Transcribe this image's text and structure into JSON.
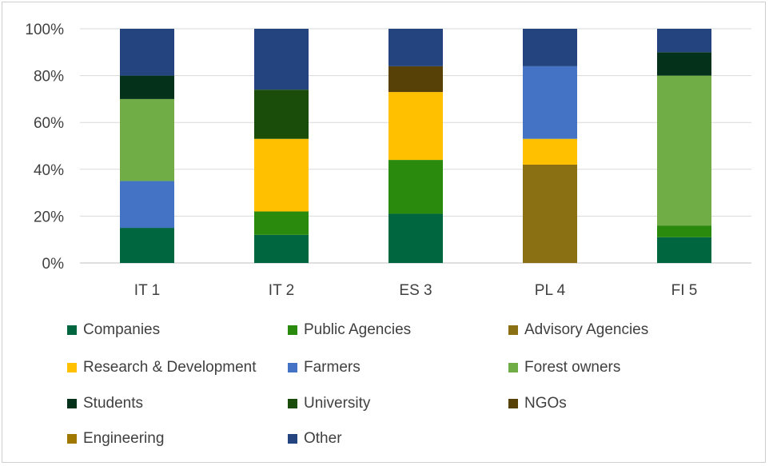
{
  "chart_data": {
    "type": "bar",
    "stacked": true,
    "categories": [
      "IT 1",
      "IT 2",
      "ES 3",
      "PL 4",
      "FI 5"
    ],
    "ylim": [
      0,
      1
    ],
    "yticks": [
      "0%",
      "20%",
      "40%",
      "60%",
      "80%",
      "100%"
    ],
    "grid": true,
    "legend_position": "bottom",
    "series": [
      {
        "name": "Companies",
        "color": "#00663F",
        "values": [
          0.15,
          0.12,
          0.21,
          0.0,
          0.11
        ]
      },
      {
        "name": "Public Agencies",
        "color": "#2A8A0E",
        "values": [
          0.0,
          0.1,
          0.23,
          0.0,
          0.05
        ]
      },
      {
        "name": "Advisory Agencies",
        "color": "#8A7012",
        "values": [
          0.0,
          0.0,
          0.0,
          0.42,
          0.0
        ]
      },
      {
        "name": "Research & Development",
        "color": "#FFC000",
        "values": [
          0.0,
          0.31,
          0.29,
          0.11,
          0.0
        ]
      },
      {
        "name": "Farmers",
        "color": "#4472C4",
        "values": [
          0.2,
          0.0,
          0.0,
          0.31,
          0.0
        ]
      },
      {
        "name": "Forest owners",
        "color": "#70AD47",
        "values": [
          0.35,
          0.0,
          0.0,
          0.0,
          0.64
        ]
      },
      {
        "name": "Students",
        "color": "#04311A",
        "values": [
          0.1,
          0.0,
          0.0,
          0.0,
          0.1
        ]
      },
      {
        "name": "University",
        "color": "#1B4D0A",
        "values": [
          0.0,
          0.21,
          0.0,
          0.0,
          0.0
        ]
      },
      {
        "name": "NGOs",
        "color": "#574107",
        "values": [
          0.0,
          0.0,
          0.11,
          0.0,
          0.0
        ]
      },
      {
        "name": "Engineering",
        "color": "#A07800",
        "values": [
          0.0,
          0.0,
          0.0,
          0.0,
          0.0
        ]
      },
      {
        "name": "Other",
        "color": "#24447F",
        "values": [
          0.2,
          0.26,
          0.16,
          0.16,
          0.1
        ]
      }
    ]
  }
}
